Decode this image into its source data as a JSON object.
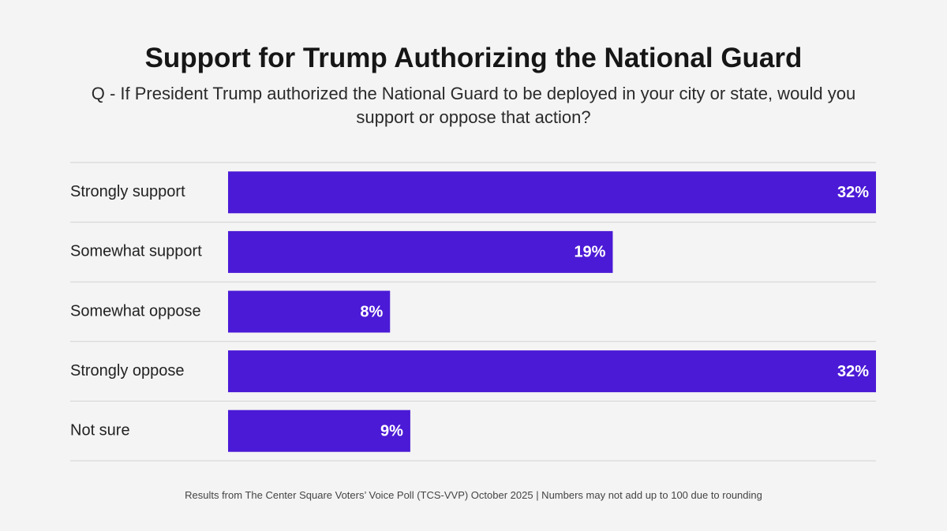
{
  "chart_data": {
    "type": "bar",
    "orientation": "horizontal",
    "title": "Support for Trump Authorizing the National Guard",
    "subtitle": "Q - If President Trump authorized the National Guard to be deployed in your city or state, would you support or oppose that action?",
    "categories": [
      "Strongly support",
      "Somewhat support",
      "Somewhat oppose",
      "Strongly oppose",
      "Not sure"
    ],
    "values": [
      32,
      19,
      8,
      32,
      9
    ],
    "value_labels": [
      "32%",
      "19%",
      "8%",
      "32%",
      "9%"
    ],
    "color": "#4b1ad6",
    "xlim": [
      0,
      32
    ],
    "note": "Results from The Center Square Voters’ Voice Poll (TCS-VVP) October 2025 | Numbers may not add up to 100 due to rounding"
  }
}
